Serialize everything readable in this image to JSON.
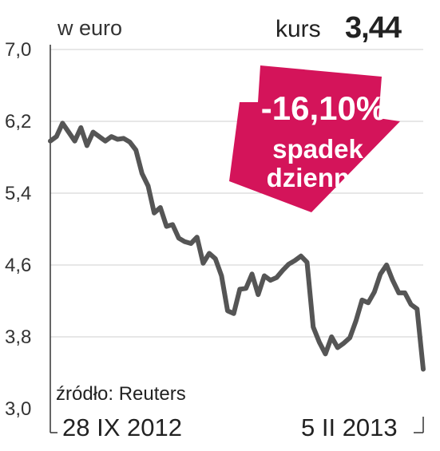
{
  "header": {
    "unit_label": "w euro",
    "kurs_label": "kurs",
    "kurs_value": "3,44"
  },
  "source_label": "źródło: Reuters",
  "annotation": {
    "change": "-16,10%",
    "line1": "spadek",
    "line2": "dzienny",
    "color": "#d4145a"
  },
  "colors": {
    "line": "#555555",
    "grid": "#cfcfcf",
    "axis": "#333333"
  },
  "chart_data": {
    "type": "line",
    "title": "",
    "xlabel": "",
    "ylabel": "w euro",
    "ylim": [
      3.0,
      7.0
    ],
    "yticks": [
      3.0,
      3.8,
      4.6,
      5.4,
      6.2,
      7.0
    ],
    "ytick_labels": [
      "3,0",
      "3,8",
      "4,6",
      "5,4",
      "6,2",
      "7,0"
    ],
    "x_start_label": "28 IX 2012",
    "x_end_label": "5 II 2013",
    "grid": true,
    "series": [
      {
        "values": [
          5.98,
          6.03,
          6.18,
          6.08,
          5.98,
          6.13,
          5.93,
          6.08,
          6.03,
          5.98,
          6.03,
          6.0,
          6.01,
          5.97,
          5.88,
          5.62,
          5.48,
          5.18,
          5.24,
          5.03,
          5.05,
          4.9,
          4.86,
          4.84,
          4.91,
          4.62,
          4.73,
          4.67,
          4.48,
          4.09,
          4.06,
          4.33,
          4.34,
          4.5,
          4.27,
          4.48,
          4.43,
          4.46,
          4.54,
          4.61,
          4.65,
          4.7,
          4.63,
          3.91,
          3.74,
          3.61,
          3.8,
          3.68,
          3.73,
          3.79,
          3.98,
          4.21,
          4.18,
          4.3,
          4.5,
          4.6,
          4.43,
          4.29,
          4.29,
          4.16,
          4.11,
          3.44
        ]
      }
    ]
  }
}
